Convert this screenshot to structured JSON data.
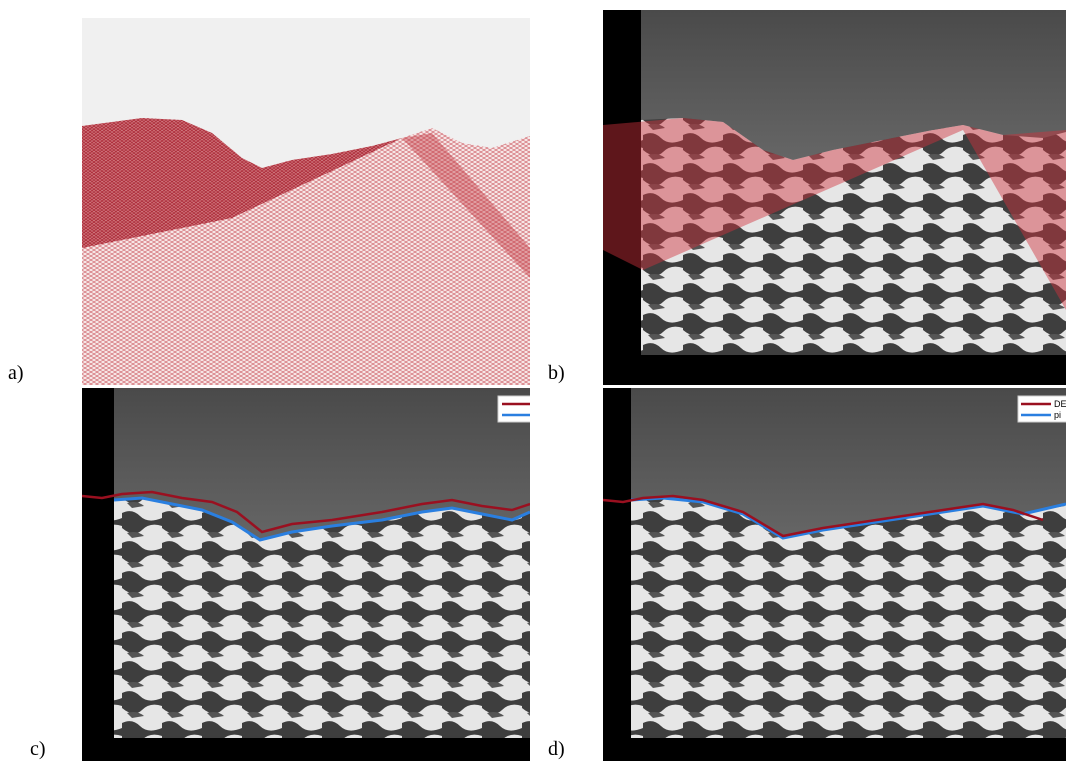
{
  "panels": [
    {
      "label": "a)"
    },
    {
      "label": "b)"
    },
    {
      "label": "c)"
    },
    {
      "label": "d)",
      "legend": [
        "DE",
        "pi"
      ]
    }
  ]
}
